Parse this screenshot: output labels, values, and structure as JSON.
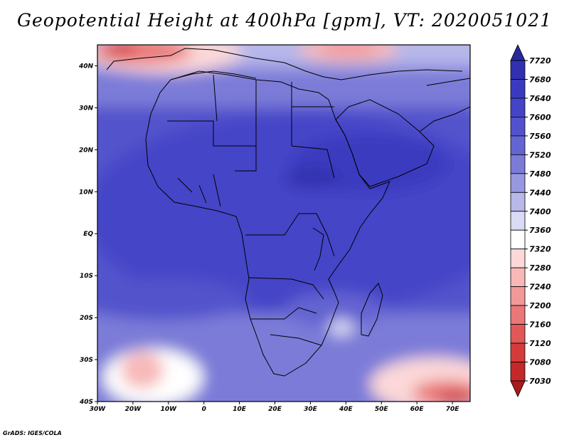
{
  "title": "Geopotential Height at 400hPa [gpm], VT: 2020051021",
  "footer": "GrADS: IGES/COLA",
  "map": {
    "lon_range": [
      -30,
      75
    ],
    "lat_range": [
      -40,
      45
    ],
    "lon_ticks": [
      {
        "value": -30,
        "label": "30W"
      },
      {
        "value": -20,
        "label": "20W"
      },
      {
        "value": -10,
        "label": "10W"
      },
      {
        "value": 0,
        "label": "0"
      },
      {
        "value": 10,
        "label": "10E"
      },
      {
        "value": 20,
        "label": "20E"
      },
      {
        "value": 30,
        "label": "30E"
      },
      {
        "value": 40,
        "label": "40E"
      },
      {
        "value": 50,
        "label": "50E"
      },
      {
        "value": 60,
        "label": "60E"
      },
      {
        "value": 70,
        "label": "70E"
      }
    ],
    "lat_ticks": [
      {
        "value": 40,
        "label": "40N"
      },
      {
        "value": 30,
        "label": "30N"
      },
      {
        "value": 20,
        "label": "20N"
      },
      {
        "value": 10,
        "label": "10N"
      },
      {
        "value": 0,
        "label": "EQ"
      },
      {
        "value": -10,
        "label": "10S"
      },
      {
        "value": -20,
        "label": "20S"
      },
      {
        "value": -30,
        "label": "30S"
      },
      {
        "value": -40,
        "label": "40S"
      }
    ]
  },
  "colorbar": {
    "levels": [
      "7720",
      "7680",
      "7640",
      "7600",
      "7560",
      "7520",
      "7480",
      "7440",
      "7400",
      "7360",
      "7320",
      "7280",
      "7240",
      "7200",
      "7160",
      "7120",
      "7080",
      "7030"
    ],
    "colors": [
      "#28289e",
      "#3030b0",
      "#3a3ac0",
      "#4444c8",
      "#5252cc",
      "#6464d2",
      "#7c7cd8",
      "#9898e0",
      "#b8b8ea",
      "#dadaf4",
      "#ffffff",
      "#fcd8d8",
      "#f8b8b8",
      "#f29898",
      "#ea7878",
      "#e05858",
      "#d43c3c",
      "#c42828",
      "#aa1a1a"
    ]
  }
}
